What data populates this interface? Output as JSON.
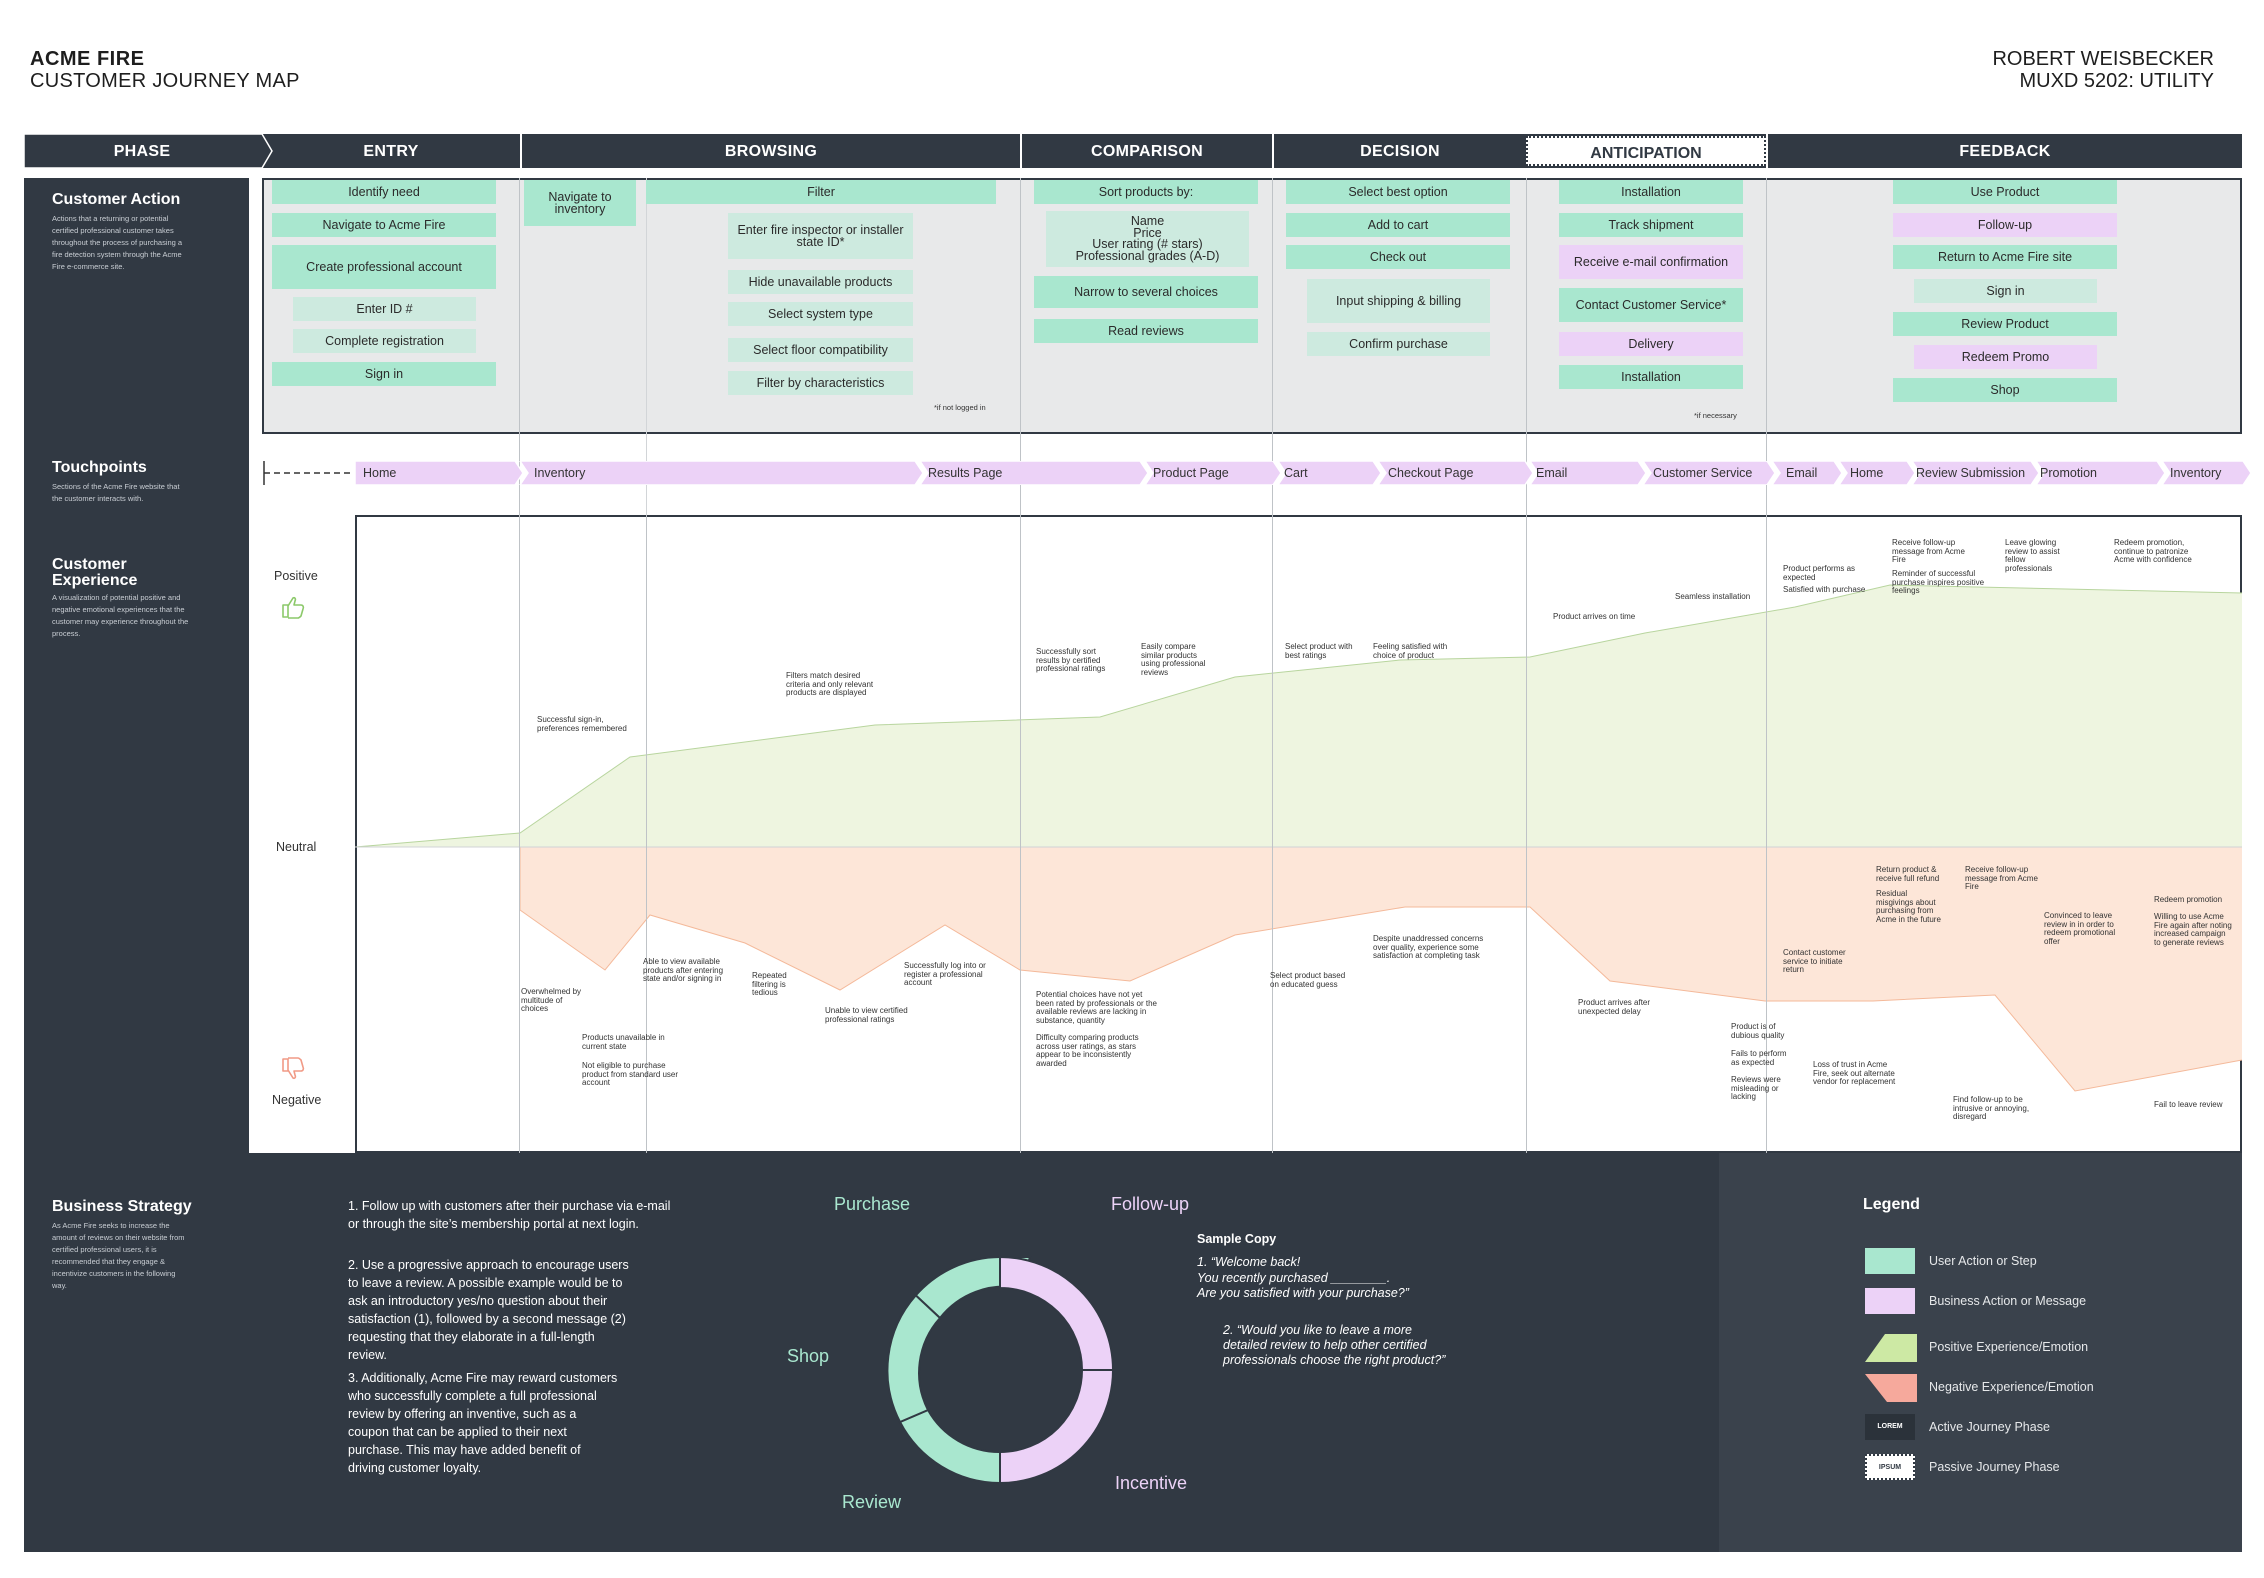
{
  "header": {
    "title": "ACME FIRE",
    "subtitle": "CUSTOMER JOURNEY MAP",
    "author": "ROBERT WEISBECKER",
    "course": "MUXD 5202: UTILITY"
  },
  "phases": {
    "label": "PHASE",
    "items": [
      "ENTRY",
      "BROWSING",
      "COMPARISON",
      "DECISION",
      "ANTICIPATION",
      "FEEDBACK"
    ]
  },
  "sidebar": {
    "action_title": "Customer Action",
    "action_desc": "Actions that a returning or potential certified professional customer takes throughout the process of purchasing a fire detection system through the Acme Fire e-commerce site.",
    "touch_title": "Touchpoints",
    "touch_desc": "Sections of the Acme Fire website that the customer interacts with.",
    "cx_title": "Customer Experience",
    "cx_desc": "A visualization of potential positive and negative emotional experiences that the customer may experience throughout the process.",
    "bs_title": "Business Strategy",
    "bs_desc": "As Acme Fire seeks to increase the amount of reviews on their website from certified professional users, it is recommended that they engage & incentivize customers in the following way."
  },
  "actions": {
    "entry": [
      "Identify need",
      "Navigate to Acme Fire",
      "Create professional account",
      "Enter ID #",
      "Complete registration",
      "Sign in"
    ],
    "browsing": [
      "Navigate to inventory",
      "Filter",
      "Enter fire inspector or installer state ID*",
      "Hide unavailable products",
      "Select system type",
      "Select floor compatibility",
      "Filter by characteristics"
    ],
    "browsing_note": "*if not logged in",
    "comparison": [
      "Sort products by:",
      "Name\nPrice\nUser rating (# stars)\nProfessional grades (A-D)",
      "Narrow to several choices",
      "Read reviews"
    ],
    "decision": [
      "Select best option",
      "Add to cart",
      "Check out",
      "Input shipping & billing",
      "Confirm purchase"
    ],
    "anticipation": [
      "Installation",
      "Track shipment",
      "Receive e-mail confirmation",
      "Contact Customer Service*",
      "Delivery",
      "Installation"
    ],
    "anticipation_note": "*if necessary",
    "feedback": [
      "Use Product",
      "Follow-up",
      "Return to Acme Fire site",
      "Sign in",
      "Review Product",
      "Redeem Promo",
      "Shop"
    ]
  },
  "touchpoints": [
    "Home",
    "Inventory",
    "Results Page",
    "Product Page",
    "Cart",
    "Checkout Page",
    "Email",
    "Customer Service",
    "Email",
    "Home",
    "Review Submission",
    "Promotion",
    "Inventory"
  ],
  "experience": {
    "positive": "Positive",
    "neutral": "Neutral",
    "negative": "Negative",
    "pos_notes": [
      "Successful sign-in, preferences remembered",
      "Filters match desired criteria and only relevant products are displayed",
      "Successfully sort results by certified professional ratings",
      "Easily compare similar products using professional reviews",
      "Select product with best ratings",
      "Feeling satisfied with choice of product",
      "Product arrives on time",
      "Seamless installation",
      "Product performs as expected",
      "Satisfied with purchase",
      "Receive follow-up message from Acme Fire",
      "Reminder of successful purchase inspires positive feelings",
      "Leave glowing review to assist fellow professionals",
      "Redeem promotion, continue to patronize Acme with confidence"
    ],
    "neg_notes": [
      "Overwhelmed by multitude of choices",
      "Products unavailable in current state",
      "Not eligible to purchase product from standard user account",
      "Able to view available products after entering state and/or signing in",
      "Repeated filtering is tedious",
      "Unable to view certified professional ratings",
      "Successfully log into or register a professional account",
      "Potential choices have not yet been rated by professionals or the available reviews are lacking in substance, quantity",
      "Difficulty comparing products across user ratings, as stars appear to be inconsistently awarded",
      "Select product based on educated guess",
      "Despite unaddressed concerns over quality, experience some satisfaction at completing task",
      "Product arrives after unexpected delay",
      "Product is of dubious quality",
      "Fails to perform as expected",
      "Reviews were misleading or lacking",
      "Contact customer service to initiate return",
      "Return product & receive full refund",
      "Residual misgivings about purchasing from Acme in the future",
      "Loss of trust in Acme Fire, seek out alternate vendor for replacement",
      "Receive follow-up message from Acme Fire",
      "Find follow-up to be intrusive or annoying, disregard",
      "Convinced to leave review in in order to redeem promotional offer",
      "Redeem promotion",
      "Willing to use Acme Fire again after noting increased campaign to generate reviews",
      "Fail to leave review"
    ]
  },
  "strategy": {
    "points": [
      "1. Follow up with customers after their purchase via e-mail or through the site’s membership portal at next login.",
      "2. Use a progressive approach to encourage users to leave a review. A possible example would be to ask an introductory yes/no question about their satisfaction (1), followed by a second message (2) requesting that they elaborate in a full-length review.",
      "3. Additionally, Acme Fire may reward customers who successfully complete a full professional review by offering an inventive, such as a coupon that can be applied to their next purchase. This may have added benefit of driving customer loyalty."
    ],
    "cycle": [
      "Purchase",
      "Follow-up",
      "Incentive",
      "Review",
      "Shop"
    ],
    "sample_title": "Sample Copy",
    "sample_1a": "1. “Welcome back!",
    "sample_1b": "You recently purchased ________.",
    "sample_1c": "Are you satisfied with your purchase?”",
    "sample_2a": "2. “Would you like to leave a more",
    "sample_2b": "detailed review to help other certified",
    "sample_2c": "professionals choose the right product?”"
  },
  "legend": {
    "title": "Legend",
    "items": [
      "User Action or Step",
      "Business Action or Message",
      "Positive Experience/Emotion",
      "Negative Experience/Emotion",
      "Active Journey Phase",
      "Passive Journey Phase"
    ],
    "active_sample": "LOREM",
    "passive_sample": "IPSUM"
  },
  "colors": {
    "dark": "#313943",
    "user_action": "#a9e7cf",
    "business_action": "#ecd2f7",
    "positive": "#eef5e0",
    "negative": "#fde6d8"
  }
}
